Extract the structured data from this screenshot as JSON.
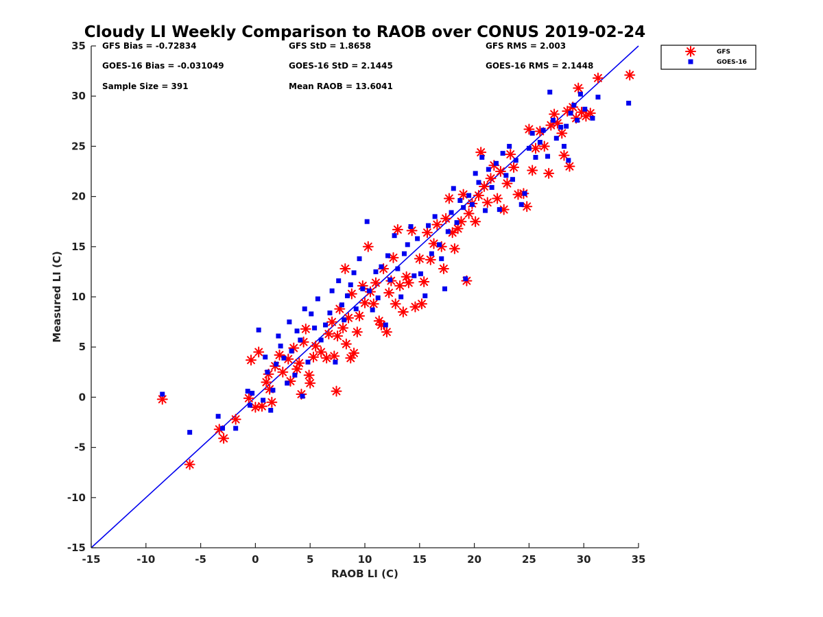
{
  "chart_data": {
    "type": "scatter",
    "title": "Cloudy LI Weekly Comparison to RAOB over CONUS 2019-02-24",
    "xlabel": "RAOB LI (C)",
    "ylabel": "Measured LI (C)",
    "xlim": [
      -15,
      35
    ],
    "ylim": [
      -15,
      35
    ],
    "xticks": [
      -15,
      -10,
      -5,
      0,
      5,
      10,
      15,
      20,
      25,
      30,
      35
    ],
    "yticks": [
      -15,
      -10,
      -5,
      0,
      5,
      10,
      15,
      20,
      25,
      30,
      35
    ],
    "xtick_labels": [
      "-15",
      "-10",
      "-5",
      "0",
      "5",
      "10",
      "15",
      "20",
      "25",
      "30",
      "35"
    ],
    "ytick_labels": [
      "-15",
      "-10",
      "-5",
      "0",
      "5",
      "10",
      "15",
      "20",
      "25",
      "30",
      "35"
    ],
    "grid": false,
    "legend_position": "top-right outside plot",
    "reference_line": {
      "type": "one-to-one",
      "color": "#0000ee"
    },
    "annotations": [
      "GFS Bias = -0.72834",
      "GFS StD = 1.8658",
      "GFS RMS = 2.003",
      "GOES-16 Bias = -0.031049",
      "GOES-16 StD = 2.1445",
      "GOES-16 RMS = 2.1448",
      "Sample Size = 391",
      "Mean RAOB = 13.6041"
    ],
    "series": [
      {
        "name": "GFS",
        "marker": "asterisk",
        "color": "#ff0000",
        "points": [
          [
            -8.5,
            -0.2
          ],
          [
            -6,
            -6.7
          ],
          [
            -3.3,
            -3.2
          ],
          [
            -2.9,
            -4.1
          ],
          [
            -1.8,
            -2.2
          ],
          [
            -0.6,
            -0.1
          ],
          [
            -0.4,
            3.7
          ],
          [
            0.3,
            4.5
          ],
          [
            0,
            -1
          ],
          [
            0.6,
            -0.9
          ],
          [
            1,
            1.5
          ],
          [
            1.3,
            0.8
          ],
          [
            1.5,
            -0.5
          ],
          [
            1.2,
            2.3
          ],
          [
            1.8,
            3.1
          ],
          [
            2.2,
            4.2
          ],
          [
            2.5,
            2.5
          ],
          [
            3,
            3.8
          ],
          [
            3.2,
            1.6
          ],
          [
            3.5,
            4.9
          ],
          [
            3.8,
            2.8
          ],
          [
            4,
            3.4
          ],
          [
            4.2,
            0.3
          ],
          [
            4.4,
            5.5
          ],
          [
            4.6,
            6.8
          ],
          [
            4.9,
            2.2
          ],
          [
            5,
            1.4
          ],
          [
            5.3,
            4
          ],
          [
            5.5,
            5.1
          ],
          [
            6,
            4.5
          ],
          [
            6.5,
            3.9
          ],
          [
            6.7,
            6.3
          ],
          [
            7,
            7.5
          ],
          [
            7.2,
            4.1
          ],
          [
            7.4,
            0.6
          ],
          [
            7.5,
            6.1
          ],
          [
            7.7,
            8.8
          ],
          [
            8,
            6.9
          ],
          [
            8.2,
            12.8
          ],
          [
            8.3,
            5.3
          ],
          [
            8.5,
            7.9
          ],
          [
            8.7,
            3.9
          ],
          [
            8.8,
            10.3
          ],
          [
            9,
            4.4
          ],
          [
            9.3,
            6.5
          ],
          [
            9.5,
            8.1
          ],
          [
            9.8,
            11.1
          ],
          [
            10,
            9.4
          ],
          [
            10.3,
            15
          ],
          [
            10.5,
            10.5
          ],
          [
            10.8,
            9.3
          ],
          [
            11,
            11.4
          ],
          [
            11.3,
            7.6
          ],
          [
            11.5,
            7.2
          ],
          [
            11.7,
            12.8
          ],
          [
            12,
            6.5
          ],
          [
            12.2,
            10.4
          ],
          [
            12.4,
            11.6
          ],
          [
            12.6,
            13.9
          ],
          [
            12.8,
            9.3
          ],
          [
            13,
            16.7
          ],
          [
            13.2,
            11.1
          ],
          [
            13.5,
            8.5
          ],
          [
            13.8,
            12
          ],
          [
            14,
            11.4
          ],
          [
            14.3,
            16.6
          ],
          [
            14.6,
            9
          ],
          [
            15,
            13.8
          ],
          [
            15.2,
            9.3
          ],
          [
            15.4,
            11.5
          ],
          [
            15.7,
            16.4
          ],
          [
            16,
            13.7
          ],
          [
            16.3,
            15.3
          ],
          [
            16.6,
            17.2
          ],
          [
            17,
            15
          ],
          [
            17.2,
            12.8
          ],
          [
            17.4,
            17.8
          ],
          [
            17.7,
            19.8
          ],
          [
            18,
            16.4
          ],
          [
            18.2,
            14.8
          ],
          [
            18.5,
            16.8
          ],
          [
            18.8,
            17.5
          ],
          [
            19,
            20.2
          ],
          [
            19.3,
            11.6
          ],
          [
            19.5,
            18.3
          ],
          [
            19.8,
            19.3
          ],
          [
            20.1,
            17.5
          ],
          [
            20.4,
            20.1
          ],
          [
            20.6,
            24.4
          ],
          [
            20.9,
            21
          ],
          [
            21.2,
            19.4
          ],
          [
            21.5,
            21.8
          ],
          [
            21.8,
            23.1
          ],
          [
            22.1,
            19.8
          ],
          [
            22.4,
            22.5
          ],
          [
            22.7,
            18.7
          ],
          [
            23,
            21.3
          ],
          [
            23.3,
            24.2
          ],
          [
            23.6,
            22.9
          ],
          [
            24,
            20.2
          ],
          [
            24.5,
            20.3
          ],
          [
            24.8,
            19
          ],
          [
            25,
            26.7
          ],
          [
            25.3,
            22.6
          ],
          [
            25.6,
            24.8
          ],
          [
            26,
            26.5
          ],
          [
            26.4,
            25
          ],
          [
            26.8,
            22.3
          ],
          [
            27,
            27.1
          ],
          [
            27.3,
            28.2
          ],
          [
            27.6,
            27.3
          ],
          [
            28,
            26.3
          ],
          [
            28.2,
            24.1
          ],
          [
            28.5,
            28.5
          ],
          [
            28.7,
            23
          ],
          [
            29,
            28.9
          ],
          [
            29.3,
            27.8
          ],
          [
            29.5,
            30.8
          ],
          [
            29.8,
            28.4
          ],
          [
            30.2,
            28
          ],
          [
            30.6,
            28.3
          ],
          [
            31.3,
            31.8
          ],
          [
            34.2,
            32.1
          ]
        ]
      },
      {
        "name": "GOES-16",
        "marker": "square",
        "color": "#0000ee",
        "points": [
          [
            -8.5,
            0.3
          ],
          [
            -6,
            -3.5
          ],
          [
            -3.4,
            -1.9
          ],
          [
            -3,
            -3.1
          ],
          [
            -1.8,
            -3.1
          ],
          [
            -0.7,
            0.6
          ],
          [
            -0.5,
            -0.8
          ],
          [
            -0.3,
            0.4
          ],
          [
            0.3,
            6.7
          ],
          [
            0.7,
            -0.3
          ],
          [
            0.9,
            4
          ],
          [
            1.1,
            2.5
          ],
          [
            1.4,
            -1.3
          ],
          [
            1.6,
            0.7
          ],
          [
            1.9,
            3.3
          ],
          [
            2.1,
            6.1
          ],
          [
            2.3,
            5.1
          ],
          [
            2.6,
            3.9
          ],
          [
            2.9,
            1.4
          ],
          [
            3.1,
            7.5
          ],
          [
            3.3,
            4.6
          ],
          [
            3.6,
            2.2
          ],
          [
            3.8,
            6.6
          ],
          [
            4.1,
            5.7
          ],
          [
            4.3,
            0.1
          ],
          [
            4.5,
            8.8
          ],
          [
            4.8,
            3.5
          ],
          [
            5.1,
            8.3
          ],
          [
            5.4,
            6.9
          ],
          [
            5.7,
            9.8
          ],
          [
            6,
            5.7
          ],
          [
            6.4,
            7.2
          ],
          [
            6.8,
            8.4
          ],
          [
            7,
            10.6
          ],
          [
            7.3,
            3.5
          ],
          [
            7.6,
            11.6
          ],
          [
            7.9,
            9.2
          ],
          [
            8.1,
            7.7
          ],
          [
            8.4,
            10.1
          ],
          [
            8.7,
            11.2
          ],
          [
            9,
            12.4
          ],
          [
            9.2,
            8.8
          ],
          [
            9.5,
            13.8
          ],
          [
            9.8,
            10.8
          ],
          [
            10.2,
            17.5
          ],
          [
            10.4,
            10.6
          ],
          [
            10.7,
            8.7
          ],
          [
            11,
            12.5
          ],
          [
            11.2,
            9.9
          ],
          [
            11.5,
            13
          ],
          [
            11.9,
            7.2
          ],
          [
            12.1,
            14.1
          ],
          [
            12.3,
            11.7
          ],
          [
            12.7,
            16.1
          ],
          [
            13,
            12.8
          ],
          [
            13.3,
            10
          ],
          [
            13.6,
            14.3
          ],
          [
            13.9,
            15.2
          ],
          [
            14.2,
            17
          ],
          [
            14.5,
            12.1
          ],
          [
            14.8,
            15.8
          ],
          [
            15.1,
            12.3
          ],
          [
            15.5,
            10.1
          ],
          [
            15.8,
            17.1
          ],
          [
            16.1,
            14.3
          ],
          [
            16.4,
            18
          ],
          [
            16.8,
            15.2
          ],
          [
            17,
            13.8
          ],
          [
            17.3,
            10.8
          ],
          [
            17.6,
            16.5
          ],
          [
            17.9,
            18.4
          ],
          [
            18.1,
            20.8
          ],
          [
            18.4,
            17.4
          ],
          [
            18.7,
            19.6
          ],
          [
            19,
            18.9
          ],
          [
            19.2,
            11.8
          ],
          [
            19.5,
            20.1
          ],
          [
            19.8,
            19.2
          ],
          [
            20.1,
            22.3
          ],
          [
            20.4,
            21.4
          ],
          [
            20.7,
            23.9
          ],
          [
            21,
            18.6
          ],
          [
            21.3,
            22.7
          ],
          [
            21.6,
            20.9
          ],
          [
            22,
            23.3
          ],
          [
            22.3,
            18.7
          ],
          [
            22.6,
            24.3
          ],
          [
            22.9,
            22.1
          ],
          [
            23.2,
            25
          ],
          [
            23.5,
            21.7
          ],
          [
            23.8,
            23.6
          ],
          [
            24.3,
            19.2
          ],
          [
            24.6,
            20.3
          ],
          [
            25,
            24.8
          ],
          [
            25.3,
            26.3
          ],
          [
            25.6,
            23.9
          ],
          [
            26,
            25.4
          ],
          [
            26.3,
            26.6
          ],
          [
            26.7,
            24
          ],
          [
            26.9,
            30.4
          ],
          [
            27.2,
            27.6
          ],
          [
            27.5,
            25.8
          ],
          [
            27.9,
            26.9
          ],
          [
            28.2,
            25
          ],
          [
            28.4,
            27
          ],
          [
            28.8,
            28.3
          ],
          [
            28.6,
            23.6
          ],
          [
            29.1,
            29.1
          ],
          [
            29.4,
            27.6
          ],
          [
            29.7,
            30.2
          ],
          [
            30.1,
            28.7
          ],
          [
            30.8,
            27.8
          ],
          [
            31.3,
            29.9
          ],
          [
            34.1,
            29.3
          ]
        ]
      }
    ]
  }
}
